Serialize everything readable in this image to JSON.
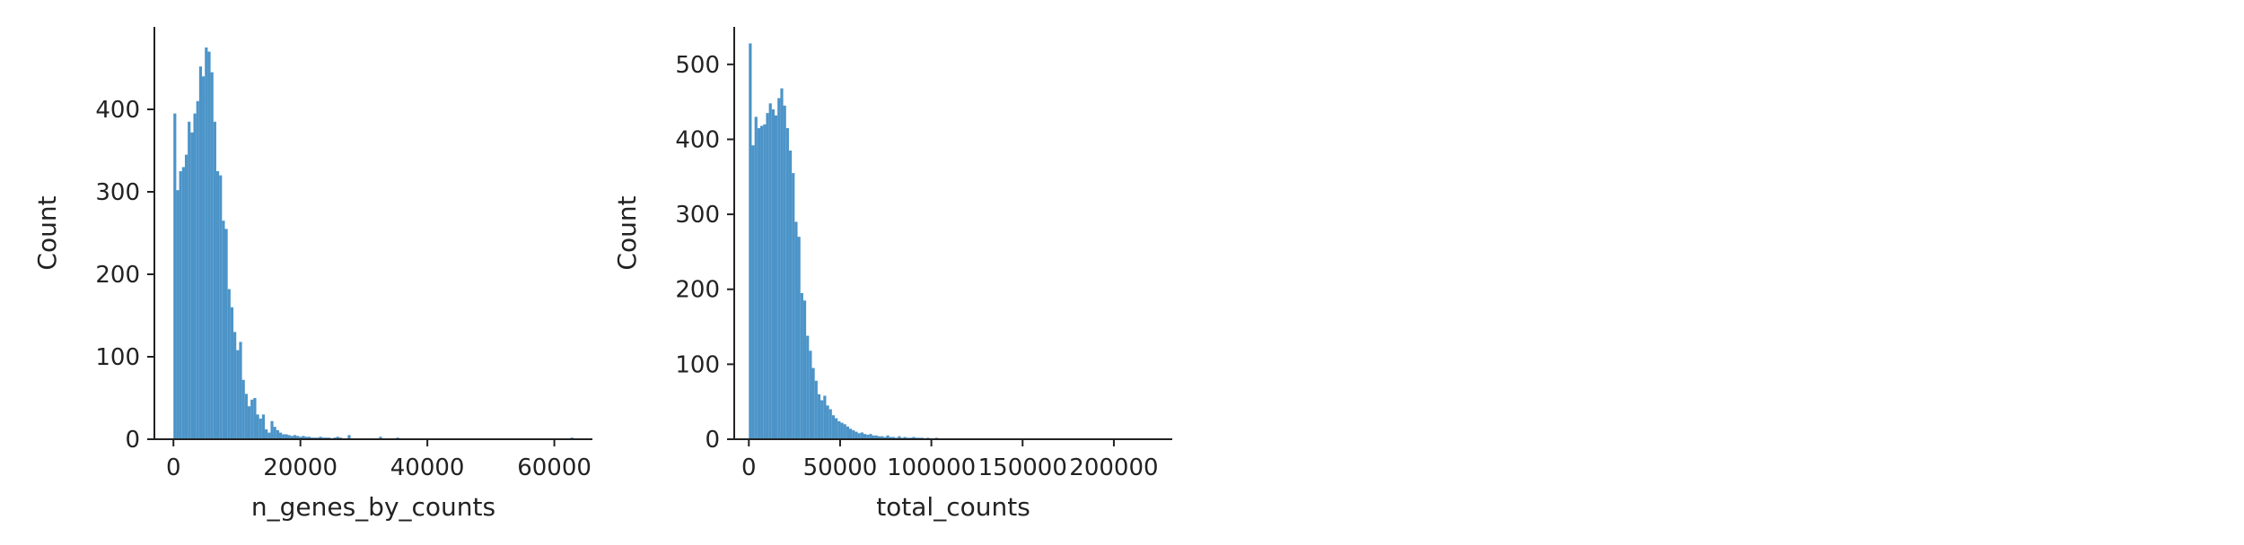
{
  "chart_data": [
    {
      "type": "bar",
      "subtype": "histogram",
      "xlabel": "n_genes_by_counts",
      "ylabel": "Count",
      "xlim": [
        -3000,
        66000
      ],
      "ylim": [
        0,
        500
      ],
      "xticks": [
        0,
        20000,
        40000,
        60000
      ],
      "xtick_labels": [
        "0",
        "20000",
        "40000",
        "60000"
      ],
      "yticks": [
        0,
        100,
        200,
        300,
        400
      ],
      "ytick_labels": [
        "0",
        "100",
        "200",
        "300",
        "400"
      ],
      "bar_color": "#4c94c8",
      "grid": false,
      "bin_start": 0,
      "bin_width": 450,
      "counts": [
        395,
        302,
        325,
        330,
        345,
        385,
        372,
        395,
        410,
        452,
        440,
        475,
        470,
        445,
        385,
        325,
        320,
        265,
        255,
        182,
        160,
        130,
        108,
        118,
        72,
        55,
        40,
        48,
        50,
        30,
        25,
        30,
        12,
        8,
        22,
        15,
        11,
        8,
        6,
        6,
        5,
        4,
        5,
        4,
        3,
        4,
        3,
        3,
        2,
        2,
        2,
        3,
        2,
        2,
        2,
        1,
        2,
        3,
        2,
        1,
        1,
        5,
        1,
        1,
        1,
        1,
        1,
        1,
        1,
        1,
        1,
        1,
        3,
        1,
        1,
        1,
        1,
        1,
        2,
        1,
        1,
        1,
        1,
        1,
        1,
        1,
        1,
        1,
        1,
        1,
        1,
        1,
        1,
        1,
        1,
        1,
        1,
        1,
        1,
        1,
        1,
        1,
        1,
        1,
        1,
        1,
        1,
        1,
        1,
        1,
        1,
        1,
        1,
        1,
        1,
        1,
        1,
        1,
        1,
        1,
        1,
        1,
        1,
        1,
        1,
        1,
        1,
        1,
        1,
        1,
        1,
        1,
        1,
        1,
        1,
        1,
        1,
        1,
        1,
        2
      ]
    },
    {
      "type": "bar",
      "subtype": "histogram",
      "xlabel": "total_counts",
      "ylabel": "Count",
      "xlim": [
        -8000,
        232000
      ],
      "ylim": [
        0,
        550
      ],
      "xticks": [
        0,
        50000,
        100000,
        150000,
        200000
      ],
      "xtick_labels": [
        "0",
        "50000",
        "100000",
        "150000",
        "200000"
      ],
      "yticks": [
        0,
        100,
        200,
        300,
        400,
        500
      ],
      "ytick_labels": [
        "0",
        "100",
        "200",
        "300",
        "400",
        "500"
      ],
      "bar_color": "#4c94c8",
      "grid": false,
      "bin_start": 0,
      "bin_width": 1570,
      "counts": [
        528,
        392,
        430,
        415,
        418,
        420,
        435,
        448,
        440,
        432,
        455,
        468,
        445,
        415,
        385,
        355,
        290,
        270,
        195,
        185,
        138,
        118,
        95,
        78,
        60,
        52,
        58,
        45,
        40,
        32,
        28,
        24,
        22,
        20,
        17,
        14,
        12,
        10,
        8,
        9,
        7,
        6,
        7,
        5,
        5,
        4,
        4,
        3,
        5,
        3,
        3,
        2,
        4,
        2,
        3,
        2,
        2,
        3,
        2,
        2,
        2,
        1,
        2,
        1,
        1,
        2,
        1,
        1,
        1,
        1,
        1,
        1,
        1,
        1,
        1,
        1,
        1,
        1,
        1,
        1,
        1,
        1,
        1,
        1,
        1,
        1,
        1,
        1,
        1,
        1,
        1,
        1,
        1,
        1,
        1,
        1,
        1,
        1,
        1,
        1,
        1,
        1,
        1,
        1,
        1,
        1,
        1,
        1,
        1,
        1,
        1,
        1,
        1,
        1,
        1,
        1,
        1,
        1,
        1,
        1,
        1,
        1,
        1,
        1,
        1,
        1,
        1,
        1,
        1,
        1,
        1,
        1,
        1,
        1,
        1,
        1,
        1,
        1,
        1,
        1,
        1
      ]
    }
  ]
}
